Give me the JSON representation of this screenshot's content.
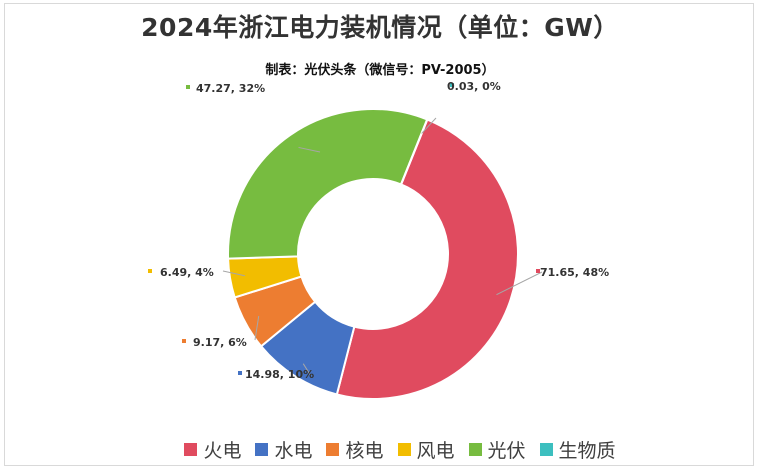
{
  "title": "2024年浙江电力装机情况（单位：GW）",
  "subtitle": "制表：光伏头条（微信号：PV-2005）",
  "chart_data": {
    "type": "pie",
    "donut": true,
    "legend_position": "bottom",
    "series": [
      {
        "name": "火电",
        "value": 71.65,
        "percent": "48%",
        "label": "71.65, 48%",
        "color": "#e04b5f"
      },
      {
        "name": "水电",
        "value": 14.98,
        "percent": "10%",
        "label": "14.98, 10%",
        "color": "#4472c4"
      },
      {
        "name": "核电",
        "value": 9.17,
        "percent": "6%",
        "label": "9.17, 6%",
        "color": "#ed7d31"
      },
      {
        "name": "风电",
        "value": 6.49,
        "percent": "4%",
        "label": "6.49, 4%",
        "color": "#f2bd00"
      },
      {
        "name": "光伏",
        "value": 47.27,
        "percent": "32%",
        "label": "47.27, 32%",
        "color": "#77bc40"
      },
      {
        "name": "生物质",
        "value": 0.03,
        "percent": "0%",
        "label": "0.03, 0%",
        "color": "#3cbfbf"
      }
    ]
  }
}
